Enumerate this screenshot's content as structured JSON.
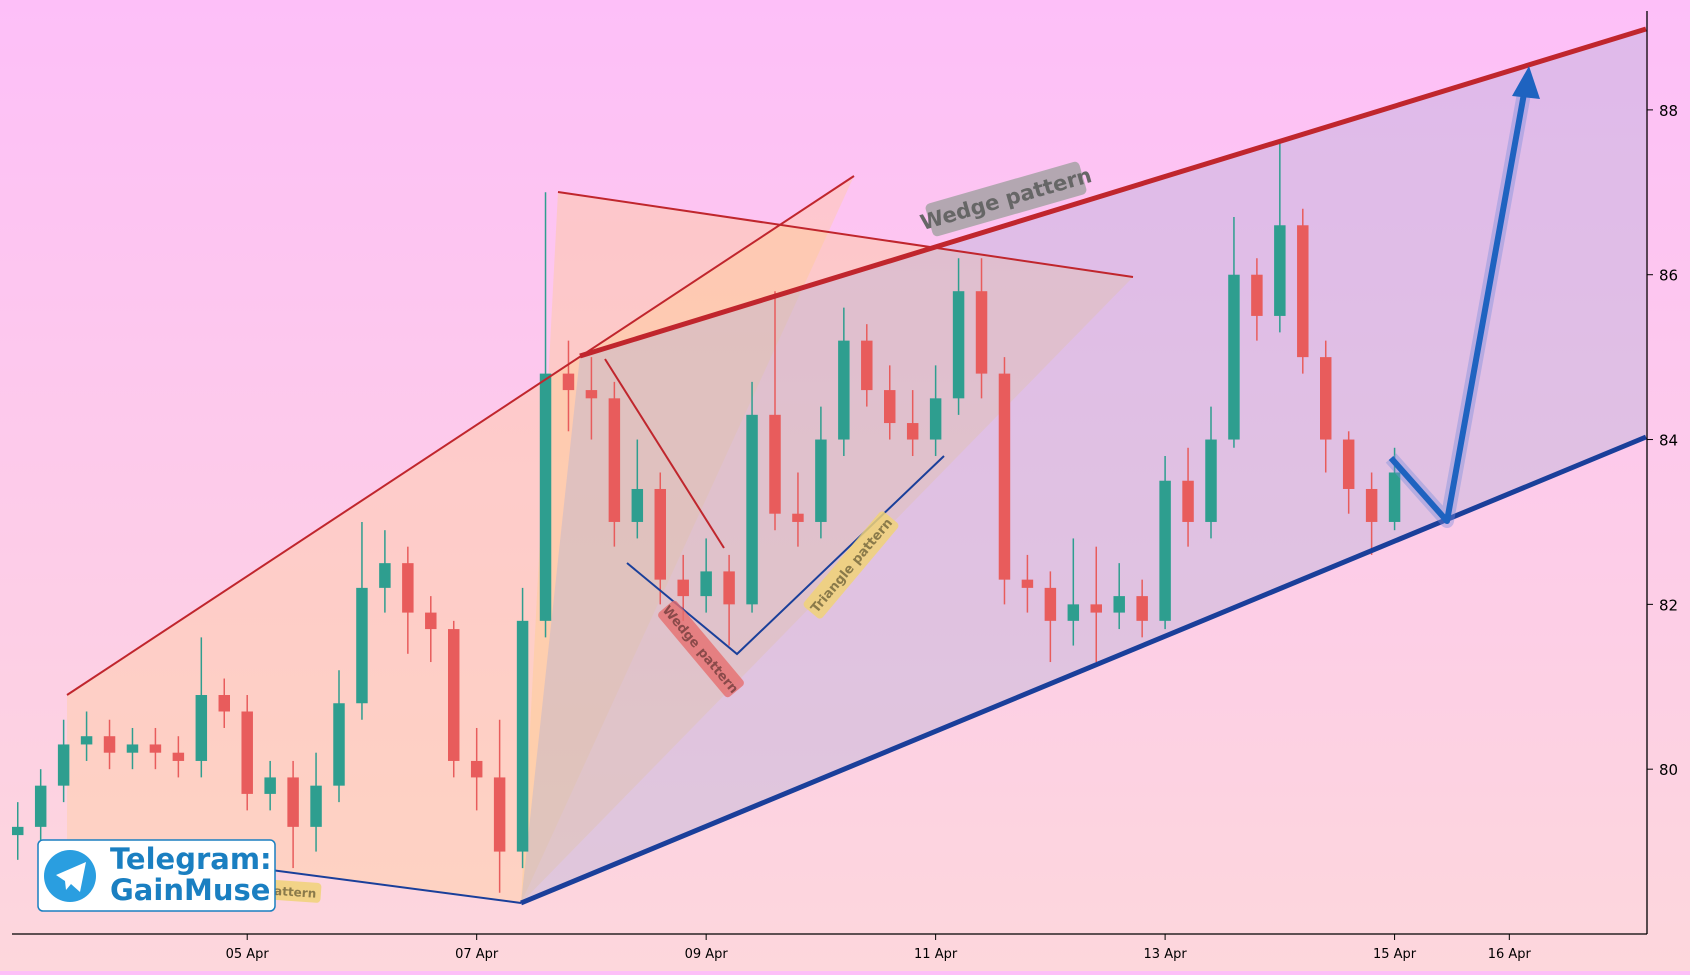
{
  "chart_data": {
    "type": "candlestick",
    "x": [
      3,
      3.2,
      3.4,
      3.6,
      3.8,
      4,
      4.2,
      4.4,
      4.6,
      4.8,
      5,
      5.2,
      5.4,
      5.6,
      5.8,
      6,
      6.2,
      6.4,
      6.6,
      6.8,
      7,
      7.2,
      7.4,
      7.6,
      7.8,
      8,
      8.2,
      8.4,
      8.6,
      8.8,
      9,
      9.2,
      9.4,
      9.6,
      9.8,
      10,
      10.2,
      10.4,
      10.6,
      10.8,
      11,
      11.2,
      11.4,
      11.6,
      11.8,
      12,
      12.2,
      12.4,
      12.6,
      12.8,
      13,
      13.2,
      13.4,
      13.6,
      13.8,
      14,
      14.2,
      14.4,
      14.6,
      14.8,
      15
    ],
    "open": [
      79.2,
      79.3,
      79.8,
      80.3,
      80.4,
      80.2,
      80.3,
      80.2,
      80.1,
      80.9,
      80.7,
      79.7,
      79.9,
      79.3,
      79.8,
      80.8,
      82.2,
      82.5,
      81.9,
      81.7,
      80.1,
      79.9,
      79.0,
      81.8,
      84.8,
      84.6,
      84.5,
      83.0,
      83.4,
      82.3,
      82.1,
      82.4,
      82.0,
      84.3,
      83.1,
      83.0,
      84.0,
      85.2,
      84.6,
      84.2,
      84.0,
      84.5,
      85.8,
      84.8,
      82.3,
      82.2,
      81.8,
      82.0,
      81.9,
      82.1,
      81.8,
      83.5,
      83.0,
      84.0,
      86.0,
      85.5,
      86.6,
      85.0,
      84.0,
      83.4,
      83.0
    ],
    "high": [
      79.6,
      80.0,
      80.6,
      80.7,
      80.6,
      80.5,
      80.5,
      80.4,
      81.6,
      81.1,
      80.9,
      80.1,
      80.1,
      80.2,
      81.2,
      83.0,
      82.9,
      82.7,
      82.1,
      81.8,
      80.5,
      80.6,
      82.2,
      87.0,
      85.2,
      85.0,
      84.7,
      84.0,
      83.6,
      82.6,
      82.8,
      82.6,
      84.7,
      85.8,
      83.6,
      84.4,
      85.6,
      85.4,
      84.9,
      84.6,
      84.9,
      86.2,
      86.2,
      85.0,
      82.6,
      82.4,
      82.8,
      82.7,
      82.5,
      82.3,
      83.8,
      83.9,
      84.4,
      86.7,
      86.2,
      87.6,
      86.8,
      85.2,
      84.1,
      83.6,
      83.9
    ],
    "low": [
      78.9,
      79.1,
      79.6,
      80.1,
      80.0,
      80.0,
      80.0,
      79.9,
      79.9,
      80.5,
      79.5,
      79.5,
      78.8,
      79.0,
      79.6,
      80.6,
      81.9,
      81.4,
      81.3,
      79.9,
      79.5,
      78.5,
      78.8,
      81.6,
      84.1,
      84.0,
      82.7,
      82.8,
      82.0,
      81.8,
      81.9,
      81.5,
      81.9,
      82.9,
      82.7,
      82.8,
      83.8,
      84.4,
      84.0,
      83.8,
      83.8,
      84.3,
      84.5,
      82.0,
      81.9,
      81.3,
      81.5,
      81.3,
      81.7,
      81.6,
      81.7,
      82.7,
      82.8,
      83.9,
      85.2,
      85.3,
      84.8,
      83.6,
      83.1,
      82.6,
      82.9
    ],
    "close": [
      79.3,
      79.8,
      80.3,
      80.4,
      80.2,
      80.3,
      80.2,
      80.1,
      80.9,
      80.7,
      79.7,
      79.9,
      79.3,
      79.8,
      80.8,
      82.2,
      82.5,
      81.9,
      81.7,
      80.1,
      79.9,
      79.0,
      81.8,
      84.8,
      84.6,
      84.5,
      83.0,
      83.4,
      82.3,
      82.1,
      82.4,
      82.0,
      84.3,
      83.1,
      83.0,
      84.0,
      85.2,
      84.6,
      84.2,
      84.0,
      84.5,
      85.8,
      84.8,
      82.3,
      82.2,
      81.8,
      82.0,
      81.9,
      82.1,
      81.8,
      83.5,
      83.0,
      84.0,
      86.0,
      85.5,
      86.6,
      85.0,
      84.0,
      83.4,
      83.0,
      83.6
    ],
    "up_color": "#2e9e8f",
    "down_color": "#e85c5c",
    "xlim": [
      2.95,
      17.2
    ],
    "xticks": [
      {
        "value": 5,
        "label": "05 Apr"
      },
      {
        "value": 7,
        "label": "07 Apr"
      },
      {
        "value": 9,
        "label": "09 Apr"
      },
      {
        "value": 11,
        "label": "11 Apr"
      },
      {
        "value": 13,
        "label": "13 Apr"
      },
      {
        "value": 15,
        "label": "15 Apr"
      },
      {
        "value": 16,
        "label": "16 Apr"
      }
    ],
    "ylim": [
      78.0,
      89.2
    ],
    "yticks": [
      80,
      82,
      84,
      86,
      88
    ],
    "annotations": [
      "Wedge pattern",
      "Wedge pattern",
      "Triangle pattern",
      "pattern"
    ]
  },
  "badge": {
    "title": "Telegram:",
    "handle": "GainMuse"
  }
}
